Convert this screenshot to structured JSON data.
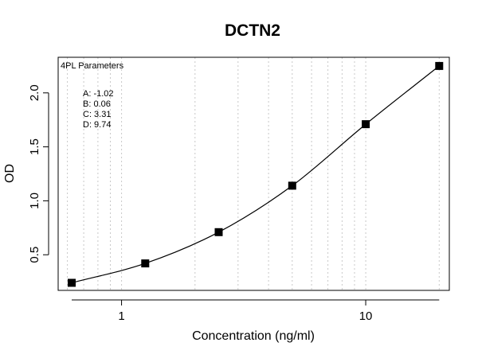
{
  "chart_data": {
    "type": "scatter",
    "title": "DCTN2",
    "xlabel": "Concentration (ng/ml)",
    "ylabel": "OD",
    "x_scale": "log",
    "x_ticks": [
      1,
      10
    ],
    "x_tick_labels": [
      "1",
      "10"
    ],
    "y_ticks": [
      0.5,
      1.0,
      1.5,
      2.0
    ],
    "y_tick_labels": [
      "0.5",
      "1.0",
      "1.5",
      "2.0"
    ],
    "xlim": [
      0.55,
      22
    ],
    "ylim": [
      0.17,
      2.33
    ],
    "grid": "vertical dotted at minor log ticks",
    "points": {
      "x": [
        0.625,
        1.25,
        2.5,
        5,
        10,
        20
      ],
      "y": [
        0.24,
        0.42,
        0.71,
        1.14,
        1.71,
        2.25
      ]
    },
    "fit": {
      "model": "4PL",
      "A": -1.02,
      "B": 0.06,
      "C": 3.31,
      "D": 9.74
    },
    "legend": {
      "title": "4PL Parameters",
      "lines": [
        "A: -1.02",
        "B: 0.06",
        "C: 3.31",
        "D: 9.74"
      ],
      "position": "top-left"
    }
  }
}
